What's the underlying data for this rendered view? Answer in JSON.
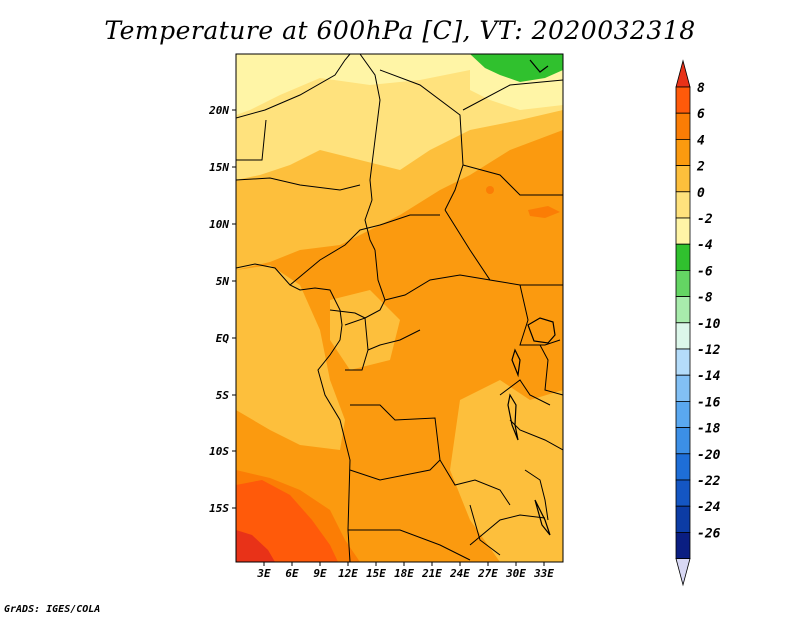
{
  "title": "Temperature at 600hPa [C], VT: 2020032318",
  "credit": "GrADS: IGES/COLA",
  "map": {
    "type": "filled-contour",
    "variable": "Temperature at 600hPa",
    "units": "C",
    "valid_time": "2020032318",
    "lon_ticks": [
      "3E",
      "6E",
      "9E",
      "12E",
      "15E",
      "18E",
      "21E",
      "24E",
      "27E",
      "30E",
      "33E"
    ],
    "lat_ticks": [
      "20N",
      "15N",
      "10N",
      "5N",
      "EQ",
      "5S",
      "10S",
      "15S"
    ],
    "lon_range": [
      0,
      35
    ],
    "lat_range": [
      -20,
      25
    ]
  },
  "legend": {
    "levels": [
      "8",
      "6",
      "4",
      "2",
      "0",
      "-2",
      "-4",
      "-6",
      "-8",
      "-10",
      "-12",
      "-14",
      "-16",
      "-18",
      "-20",
      "-22",
      "-24",
      "-26"
    ],
    "colors": [
      "#e83218",
      "#ff5a0a",
      "#fb7d05",
      "#fb9a0f",
      "#fdbf3c",
      "#ffe27d",
      "#fff5a6",
      "#30c12e",
      "#64d563",
      "#a8ecac",
      "#dcf7ea",
      "#b4dcfa",
      "#82c0f5",
      "#5aa8f0",
      "#3c8fe6",
      "#1e6ed7",
      "#1456c3",
      "#0c3ca5",
      "#0a1e82",
      "#d8d8f4"
    ]
  }
}
